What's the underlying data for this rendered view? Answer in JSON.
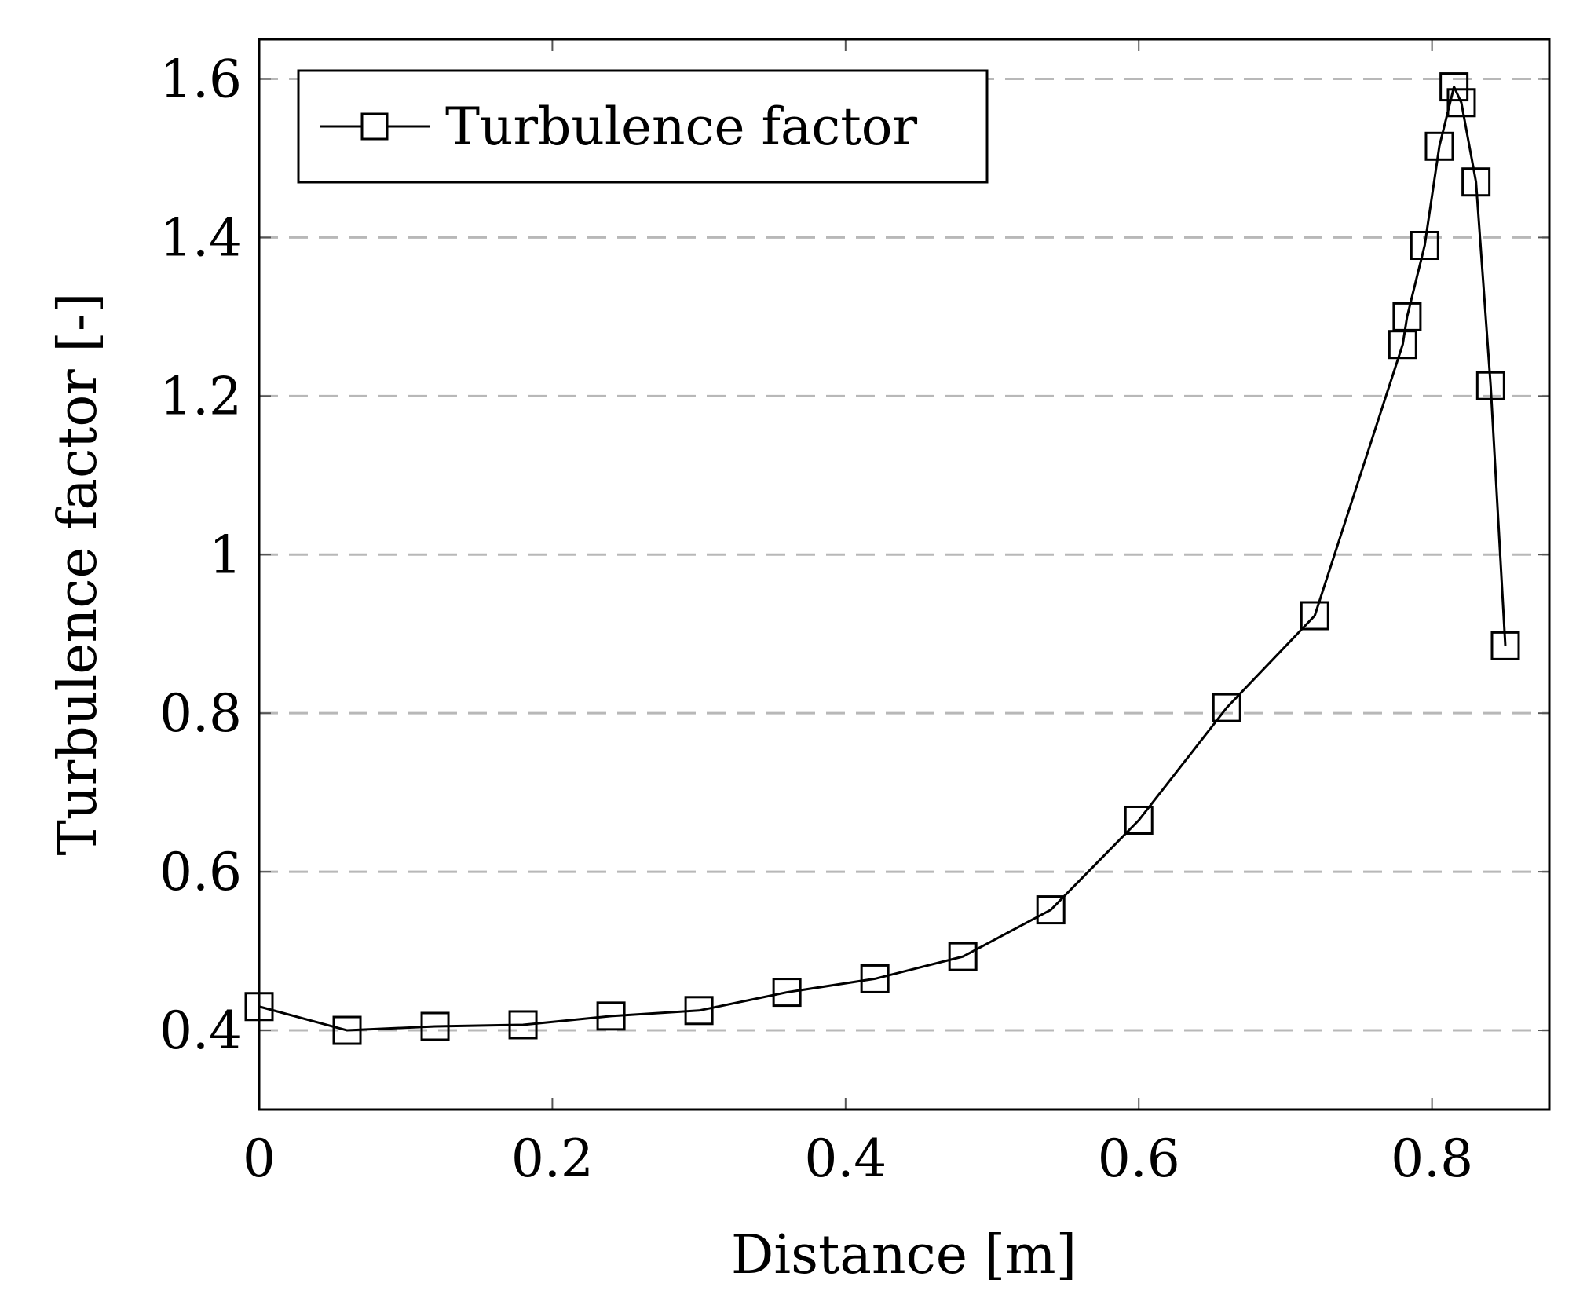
{
  "chart_data": {
    "type": "line",
    "title": "",
    "xlabel": "Distance [m]",
    "ylabel": "Turbulence factor [-]",
    "xlim": [
      0,
      0.88
    ],
    "ylim": [
      0.3,
      1.65
    ],
    "xticks": [
      0,
      0.2,
      0.4,
      0.6,
      0.8
    ],
    "xtick_labels": [
      "0",
      "0.2",
      "0.4",
      "0.6",
      "0.8"
    ],
    "yticks": [
      0.4,
      0.6,
      0.8,
      1.0,
      1.2,
      1.4,
      1.6
    ],
    "ytick_labels": [
      "0.4",
      "0.6",
      "0.8",
      "1",
      "1.2",
      "1.4",
      "1.6"
    ],
    "grid": "horizontal-dashed",
    "legend_position": "top-left",
    "series": [
      {
        "name": "Turbulence factor",
        "marker": "square",
        "color": "#000000",
        "x": [
          0,
          0.06,
          0.12,
          0.18,
          0.24,
          0.3,
          0.36,
          0.42,
          0.48,
          0.54,
          0.6,
          0.66,
          0.72,
          0.78,
          0.783,
          0.795,
          0.805,
          0.815,
          0.82,
          0.83,
          0.84,
          0.85
        ],
        "y": [
          0.43,
          0.4,
          0.405,
          0.407,
          0.418,
          0.425,
          0.448,
          0.465,
          0.493,
          0.552,
          0.665,
          0.807,
          0.923,
          1.265,
          1.3,
          1.39,
          1.515,
          1.59,
          1.57,
          1.47,
          1.213,
          0.885
        ]
      }
    ]
  }
}
